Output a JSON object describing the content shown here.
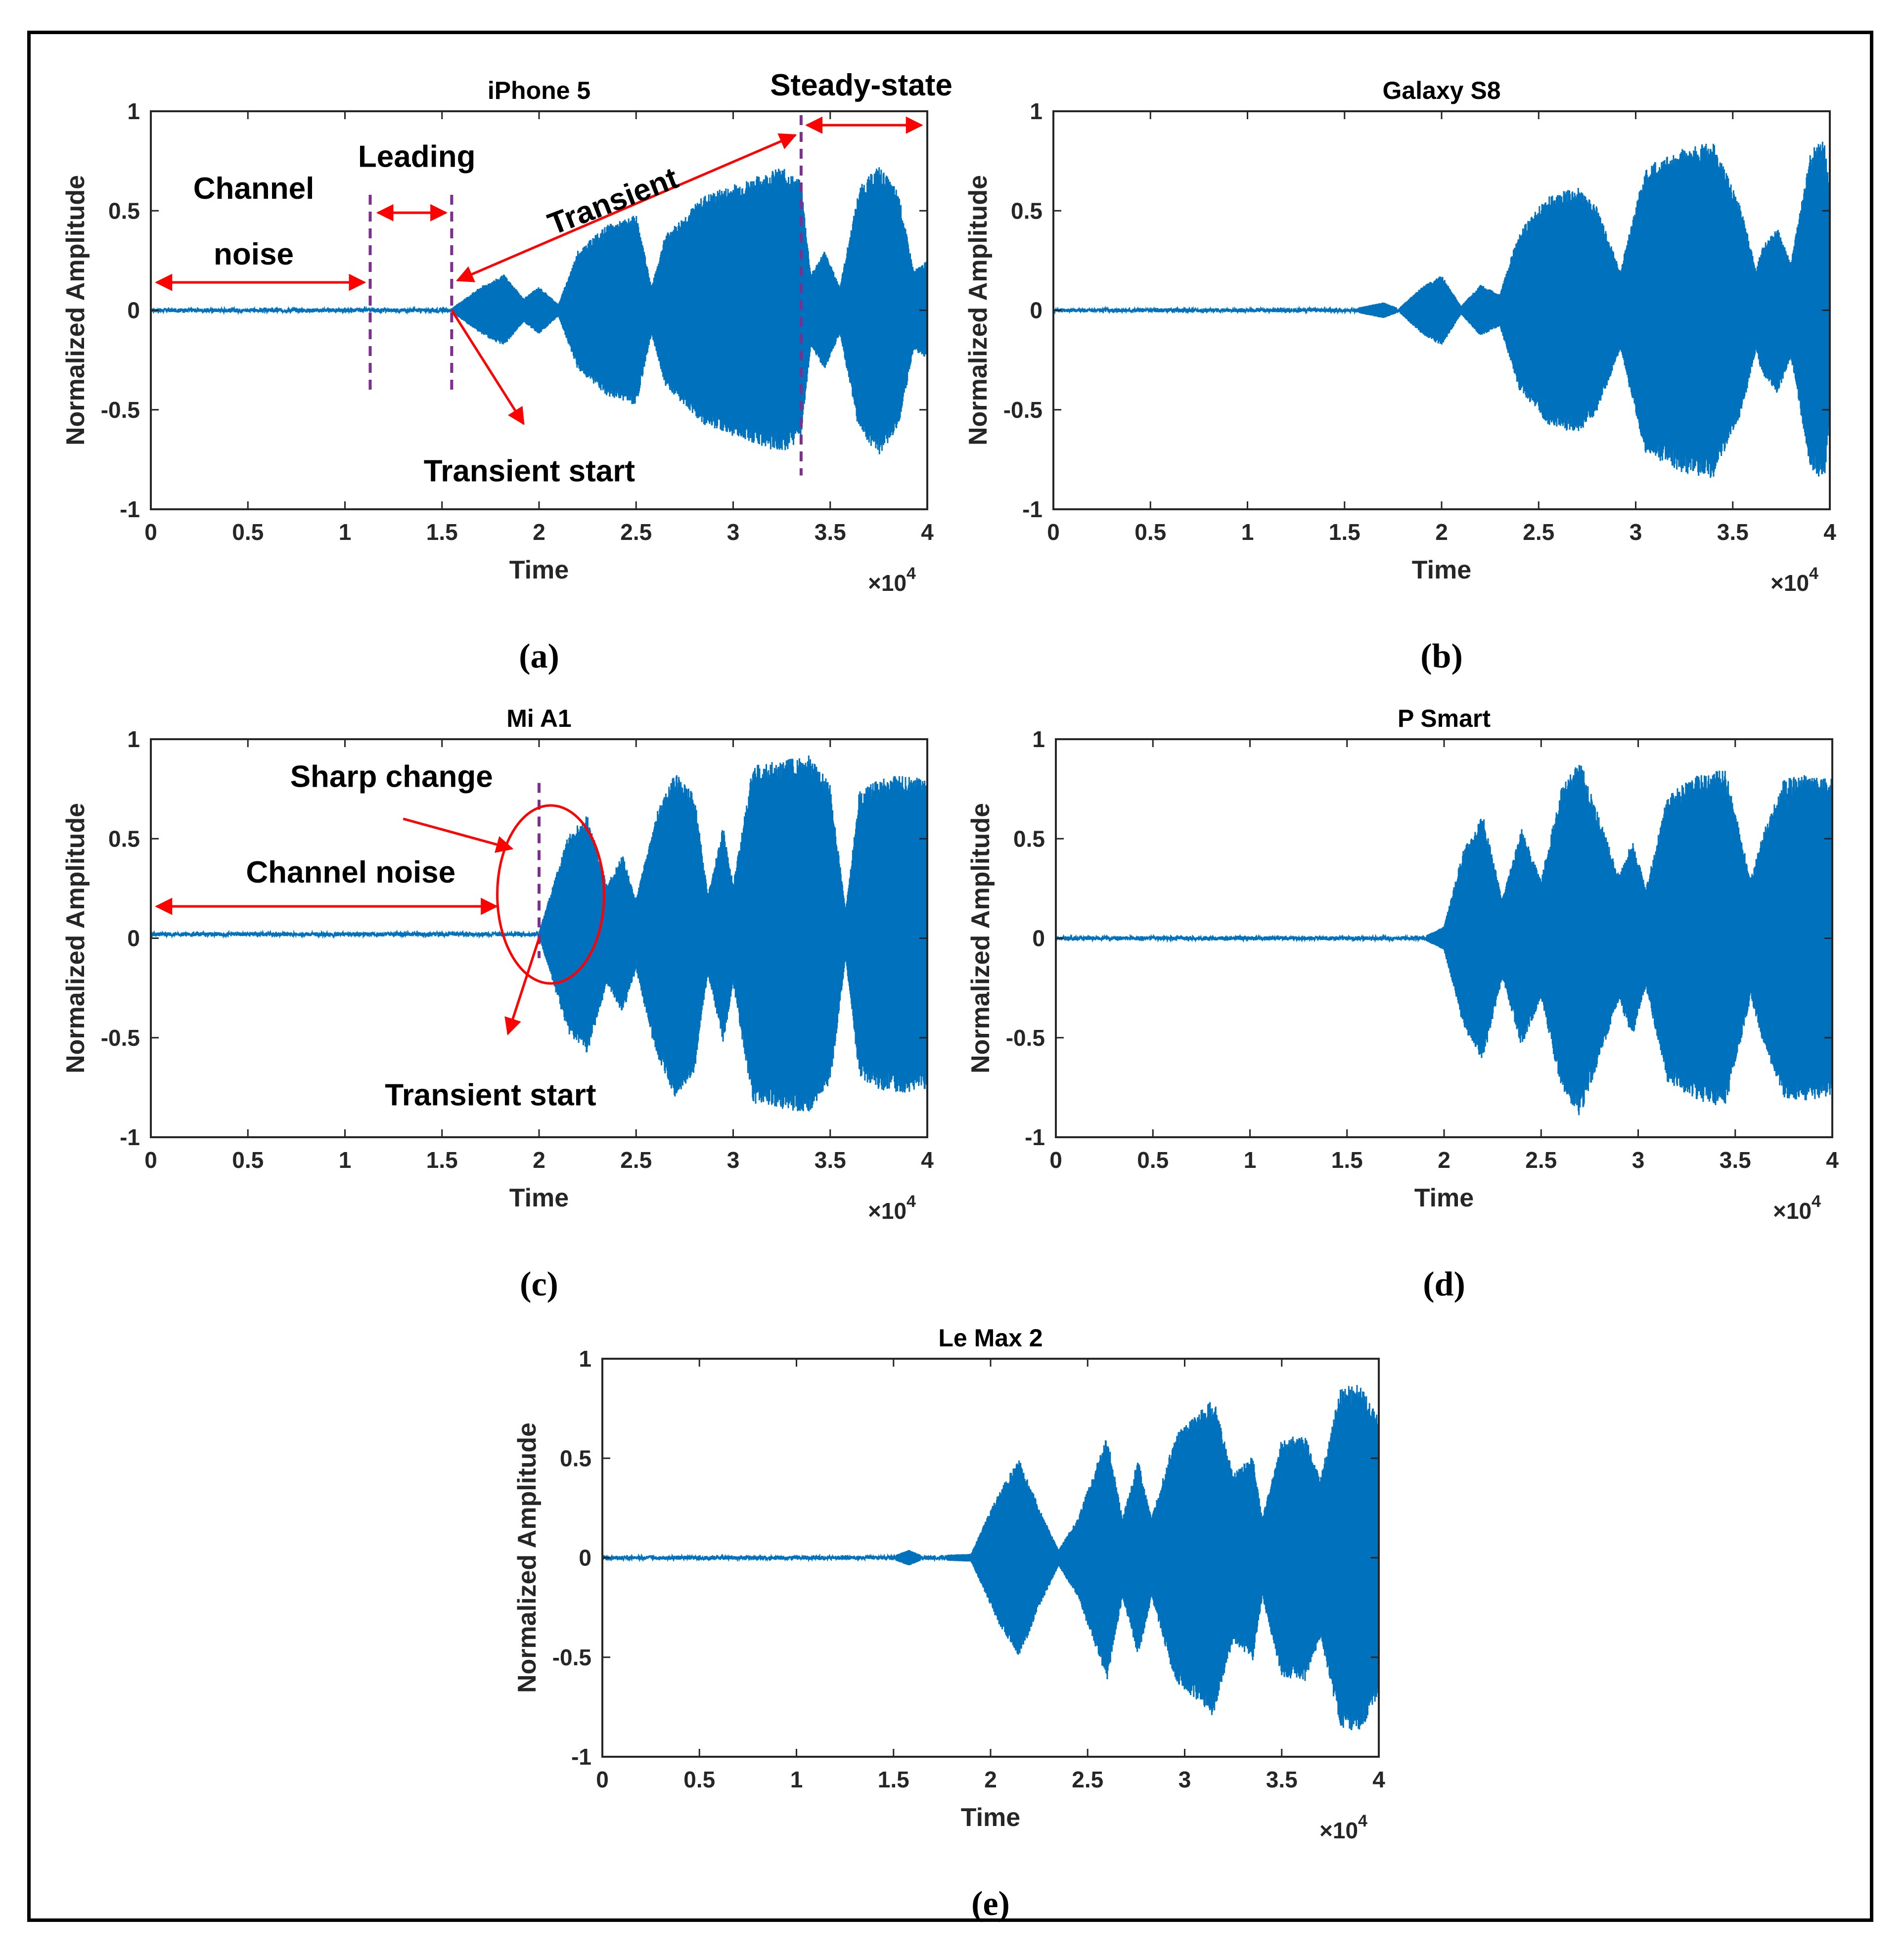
{
  "figure": {
    "xlabel": "Time",
    "ylabel": "Normalized Amplitude",
    "x_exponent_base": "×10",
    "x_exponent_power": "4",
    "x_ticks": [
      "0",
      "0.5",
      "1",
      "1.5",
      "2",
      "2.5",
      "3",
      "3.5",
      "4"
    ],
    "y_ticks": [
      "-1",
      "-0.5",
      "0",
      "0.5",
      "1"
    ],
    "signal_color": "#0072BD",
    "arrow_color": "#FF0000",
    "marker_color": "#7E2F8E"
  },
  "chart_data": [
    {
      "id": "a",
      "caption": "(a)",
      "type": "line",
      "title": "iPhone 5",
      "xlabel": "Time",
      "ylabel": "Normalized Amplitude",
      "xlim": [
        0,
        40000
      ],
      "ylim": [
        -1,
        1
      ],
      "x_scale": "×10^4",
      "noise_level": 0.01,
      "onset_x": 15500,
      "envelope": [
        [
          0,
          0.01
        ],
        [
          15500,
          0.01
        ],
        [
          17000,
          0.12
        ],
        [
          18200,
          0.18
        ],
        [
          19200,
          0.06
        ],
        [
          20000,
          0.12
        ],
        [
          21000,
          0.03
        ],
        [
          22000,
          0.3
        ],
        [
          23500,
          0.43
        ],
        [
          25000,
          0.48
        ],
        [
          25800,
          0.12
        ],
        [
          26500,
          0.38
        ],
        [
          28500,
          0.58
        ],
        [
          30500,
          0.65
        ],
        [
          32500,
          0.72
        ],
        [
          33500,
          0.65
        ],
        [
          34000,
          0.18
        ],
        [
          34700,
          0.3
        ],
        [
          35500,
          0.12
        ],
        [
          36500,
          0.62
        ],
        [
          37500,
          0.73
        ],
        [
          38500,
          0.6
        ],
        [
          39300,
          0.2
        ],
        [
          40000,
          0.25
        ]
      ],
      "annotations": {
        "channel_line1": "Channel",
        "channel_line2": "noise",
        "leading": "Leading",
        "transient": "Transient",
        "steady_state": "Steady-state",
        "transient_start": "Transient start"
      },
      "markers_x": [
        11300,
        15500,
        33500
      ]
    },
    {
      "id": "b",
      "caption": "(b)",
      "type": "line",
      "title": "Galaxy S8",
      "xlabel": "Time",
      "ylabel": "Normalized Amplitude",
      "xlim": [
        0,
        40000
      ],
      "ylim": [
        -1,
        1
      ],
      "x_scale": "×10^4",
      "noise_level": 0.01,
      "onset_x": 15500,
      "envelope": [
        [
          0,
          0.01
        ],
        [
          15500,
          0.01
        ],
        [
          17000,
          0.04
        ],
        [
          17800,
          0.01
        ],
        [
          19000,
          0.12
        ],
        [
          20000,
          0.18
        ],
        [
          21000,
          0.02
        ],
        [
          22000,
          0.13
        ],
        [
          23000,
          0.08
        ],
        [
          24000,
          0.4
        ],
        [
          25500,
          0.58
        ],
        [
          27000,
          0.62
        ],
        [
          28000,
          0.52
        ],
        [
          29200,
          0.2
        ],
        [
          30500,
          0.72
        ],
        [
          32500,
          0.82
        ],
        [
          34000,
          0.85
        ],
        [
          35500,
          0.5
        ],
        [
          36200,
          0.2
        ],
        [
          36500,
          0.32
        ],
        [
          37300,
          0.42
        ],
        [
          38000,
          0.24
        ],
        [
          39000,
          0.8
        ],
        [
          39700,
          0.87
        ],
        [
          40000,
          0.6
        ]
      ],
      "annotations": {},
      "markers_x": []
    },
    {
      "id": "c",
      "caption": "(c)",
      "type": "line",
      "title": "Mi A1",
      "xlabel": "Time",
      "ylabel": "Normalized Amplitude",
      "xlim": [
        0,
        40000
      ],
      "ylim": [
        -1,
        1
      ],
      "x_scale": "×10^4",
      "noise_level": 0.01,
      "offset": 0.02,
      "onset_x": 20000,
      "envelope": [
        [
          0,
          0.01
        ],
        [
          20000,
          0.01
        ],
        [
          21500,
          0.5
        ],
        [
          22500,
          0.6
        ],
        [
          23500,
          0.25
        ],
        [
          24300,
          0.4
        ],
        [
          25000,
          0.18
        ],
        [
          26000,
          0.6
        ],
        [
          27000,
          0.82
        ],
        [
          28000,
          0.7
        ],
        [
          28700,
          0.2
        ],
        [
          29500,
          0.55
        ],
        [
          30000,
          0.25
        ],
        [
          31000,
          0.85
        ],
        [
          32500,
          0.88
        ],
        [
          34000,
          0.9
        ],
        [
          35000,
          0.75
        ],
        [
          35800,
          0.12
        ],
        [
          36500,
          0.72
        ],
        [
          37500,
          0.78
        ],
        [
          38500,
          0.8
        ],
        [
          40000,
          0.78
        ]
      ],
      "annotations": {
        "sharp_change": "Sharp change",
        "channel_noise": "Channel noise",
        "transient_start": "Transient start"
      },
      "markers_x": [
        20000
      ]
    },
    {
      "id": "d",
      "caption": "(d)",
      "type": "line",
      "title": "P Smart",
      "xlabel": "Time",
      "ylabel": "Normalized Amplitude",
      "xlim": [
        0,
        40000
      ],
      "ylim": [
        -1,
        1
      ],
      "x_scale": "×10^4",
      "noise_level": 0.01,
      "onset_x": 19000,
      "envelope": [
        [
          0,
          0.01
        ],
        [
          19000,
          0.01
        ],
        [
          20000,
          0.06
        ],
        [
          21000,
          0.45
        ],
        [
          22000,
          0.62
        ],
        [
          23000,
          0.2
        ],
        [
          24000,
          0.55
        ],
        [
          25000,
          0.3
        ],
        [
          26000,
          0.75
        ],
        [
          27000,
          0.9
        ],
        [
          28200,
          0.55
        ],
        [
          29000,
          0.32
        ],
        [
          29700,
          0.5
        ],
        [
          30400,
          0.25
        ],
        [
          31500,
          0.72
        ],
        [
          33000,
          0.82
        ],
        [
          34500,
          0.85
        ],
        [
          35800,
          0.3
        ],
        [
          36500,
          0.55
        ],
        [
          37500,
          0.8
        ],
        [
          38500,
          0.82
        ],
        [
          40000,
          0.8
        ]
      ],
      "annotations": {},
      "markers_x": []
    },
    {
      "id": "e",
      "caption": "(e)",
      "type": "line",
      "title": "Le Max 2",
      "xlabel": "Time",
      "ylabel": "Normalized Amplitude",
      "xlim": [
        0,
        40000
      ],
      "ylim": [
        -1,
        1
      ],
      "x_scale": "×10^4",
      "noise_level": 0.01,
      "onset_x": 19000,
      "envelope": [
        [
          0,
          0.01
        ],
        [
          15000,
          0.01
        ],
        [
          15800,
          0.04
        ],
        [
          16500,
          0.01
        ],
        [
          19000,
          0.02
        ],
        [
          20500,
          0.35
        ],
        [
          21500,
          0.5
        ],
        [
          22500,
          0.25
        ],
        [
          23500,
          0.04
        ],
        [
          24500,
          0.2
        ],
        [
          26000,
          0.62
        ],
        [
          26800,
          0.2
        ],
        [
          27600,
          0.5
        ],
        [
          28300,
          0.2
        ],
        [
          29500,
          0.62
        ],
        [
          31500,
          0.8
        ],
        [
          32500,
          0.42
        ],
        [
          33500,
          0.52
        ],
        [
          34000,
          0.2
        ],
        [
          35000,
          0.6
        ],
        [
          36200,
          0.62
        ],
        [
          37000,
          0.4
        ],
        [
          38000,
          0.85
        ],
        [
          39000,
          0.88
        ],
        [
          40000,
          0.7
        ]
      ],
      "annotations": {},
      "markers_x": []
    }
  ]
}
